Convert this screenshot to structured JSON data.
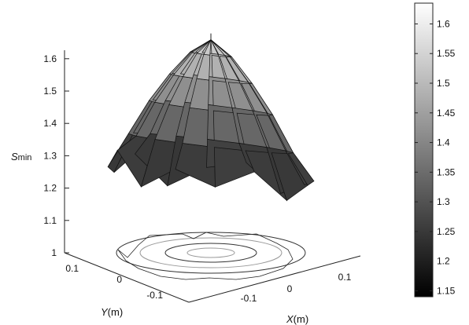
{
  "chart_data": {
    "type": "surface3d",
    "zlabel_main": "S",
    "zlabel_sub": "min",
    "xlabel_var": "X",
    "xlabel_unit": "(m)",
    "ylabel_var": "Y",
    "ylabel_unit": "(m)",
    "z_ticks": [
      "1",
      "1.1",
      "1.2",
      "1.3",
      "1.4",
      "1.5",
      "1.6"
    ],
    "x_ticks": [
      "-0.1",
      "0",
      "0.1"
    ],
    "y_ticks": [
      "0.1",
      "0",
      "-0.1"
    ],
    "zlim": [
      1.0,
      1.63
    ],
    "xlim": [
      -0.15,
      0.15
    ],
    "ylim": [
      -0.15,
      0.15
    ],
    "peak": {
      "x": 0,
      "y": 0,
      "z": 1.61
    },
    "rings": [
      {
        "r": 0.0,
        "z": 1.61
      },
      {
        "r": 0.03,
        "z": 1.565
      },
      {
        "r": 0.06,
        "z": 1.49
      },
      {
        "r": 0.09,
        "z": 1.4
      },
      {
        "r": 0.12,
        "z": 1.29
      },
      {
        "r": 0.15,
        "z": 1.18
      }
    ],
    "colorbar": {
      "colormap": "gray",
      "ticks": [
        "1.6",
        "1.55",
        "1.5",
        "1.45",
        "1.4",
        "1.35",
        "1.3",
        "1.25",
        "1.2",
        "1.15"
      ],
      "range": [
        1.14,
        1.635
      ]
    },
    "grid": false
  }
}
